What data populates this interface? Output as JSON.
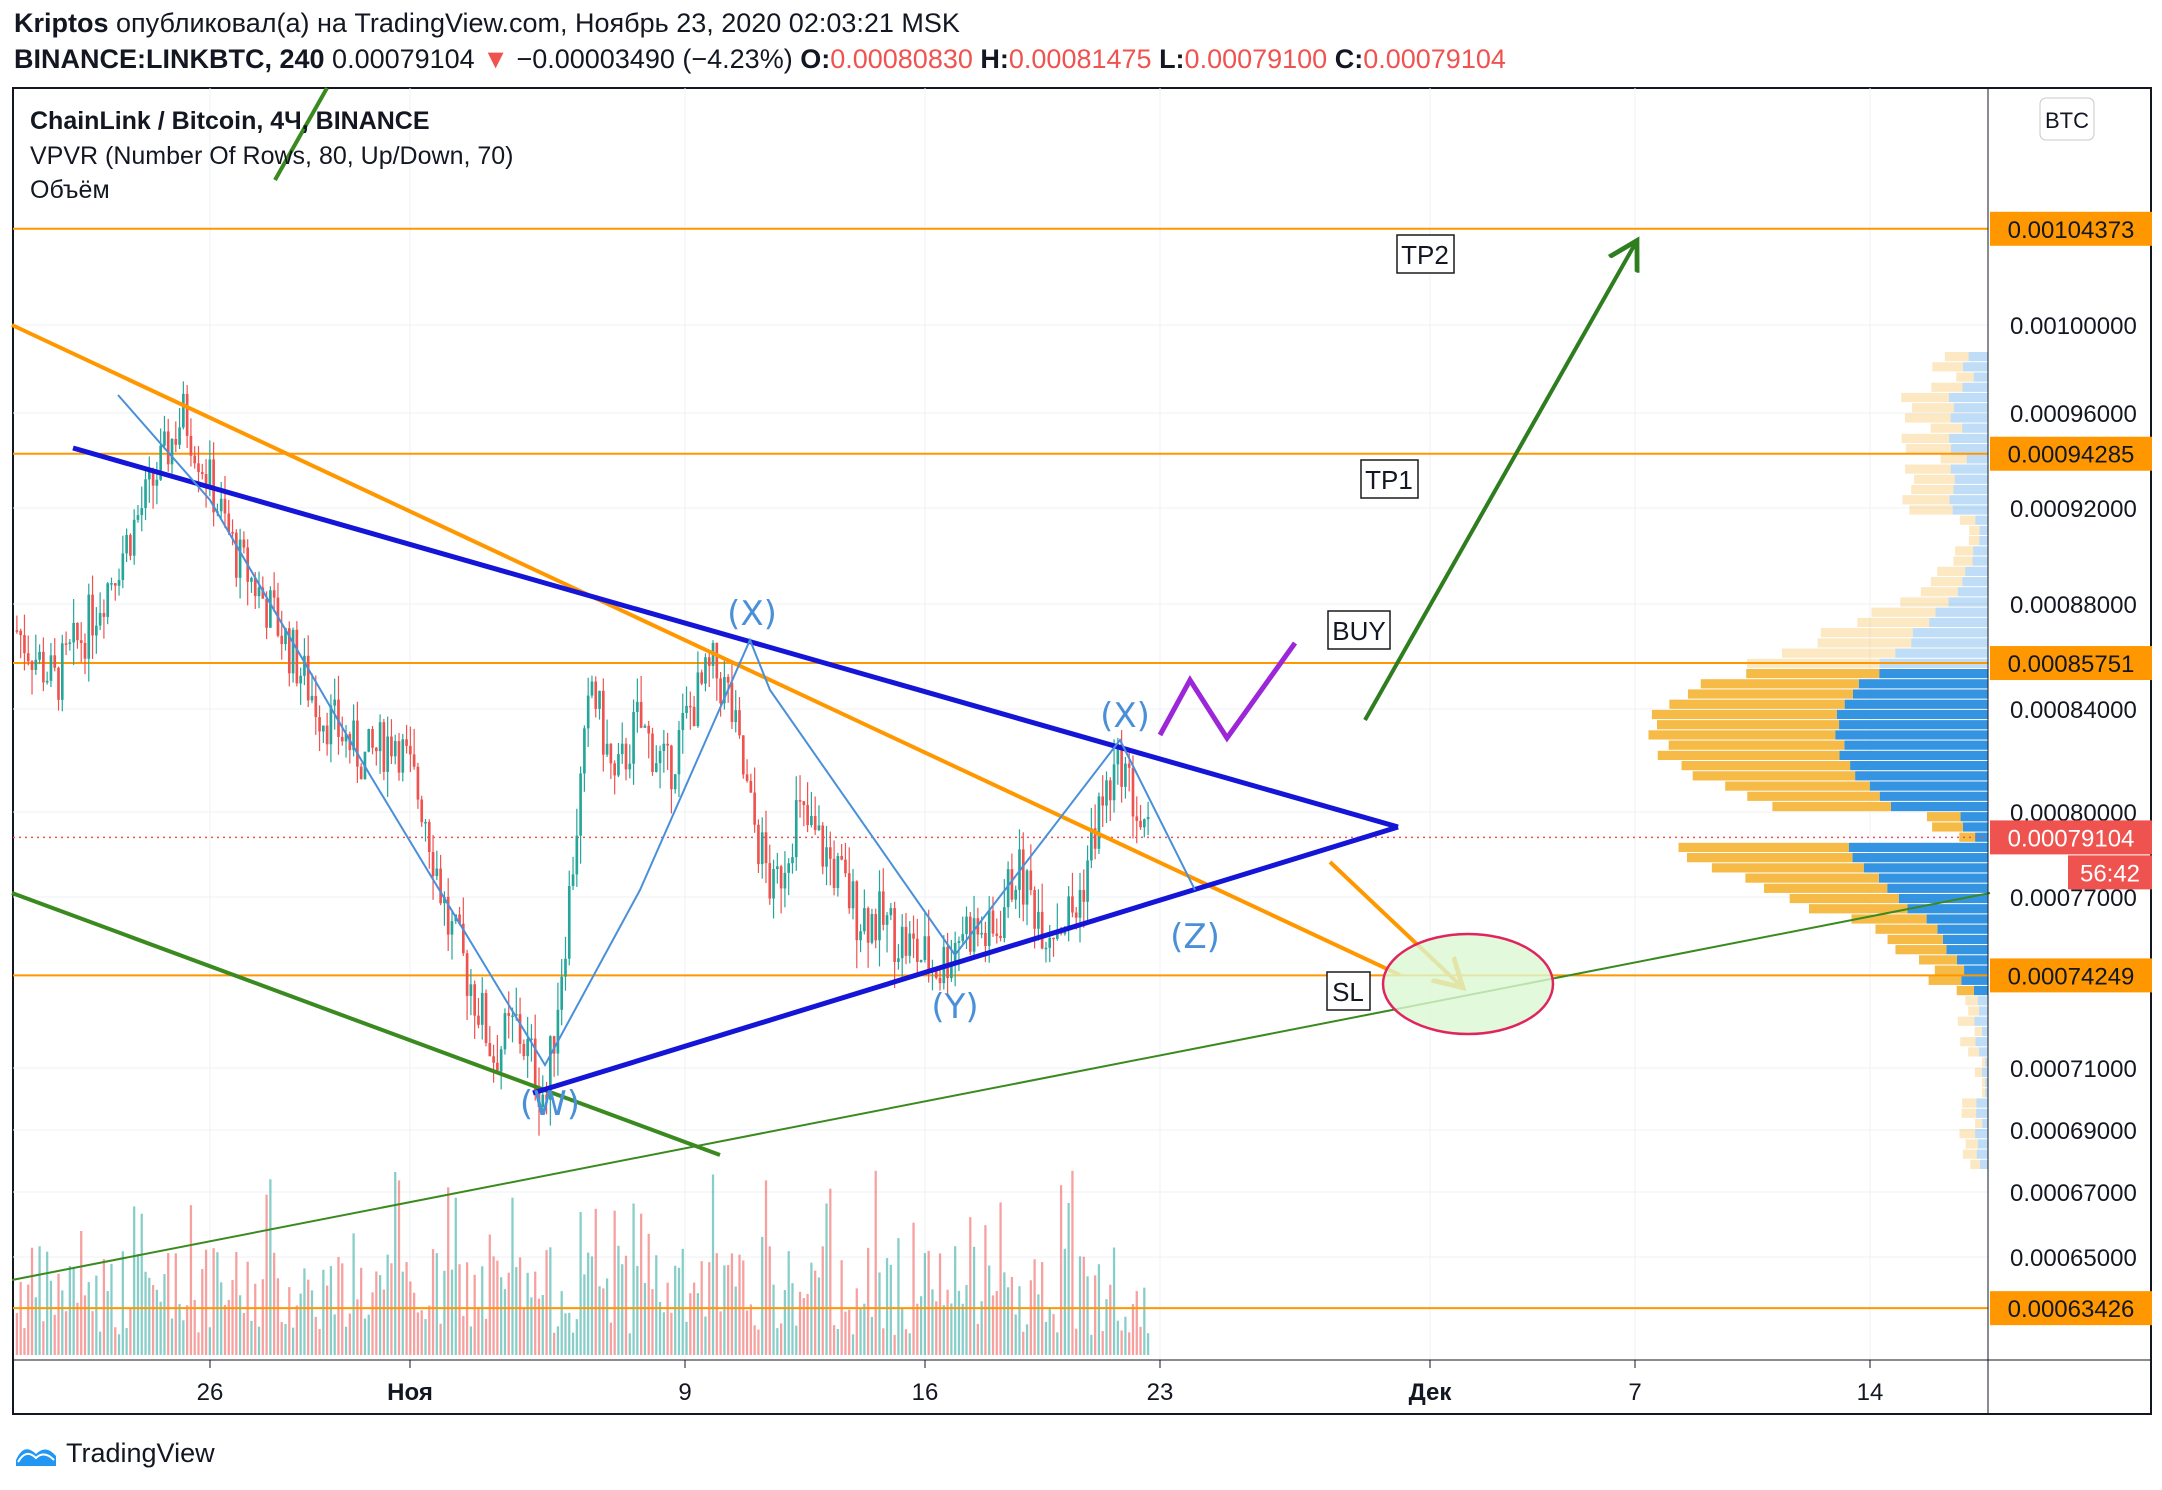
{
  "header": {
    "author": "Kriptos",
    "published_text": "опубликовал(а) на TradingView.com, Ноябрь 23, 2020 02:03:21 MSK",
    "symbol": "BINANCE:LINKBTC, 240",
    "last": "0.00079104",
    "change_arrow": "▼",
    "change": "−0.00003490 (−4.23%)",
    "o_label": "O:",
    "o": "0.00080830",
    "h_label": "H:",
    "h": "0.00081475",
    "l_label": "L:",
    "l": "0.00079100",
    "c_label": "C:",
    "c": "0.00079104"
  },
  "legend": {
    "title": "ChainLink / Bitcoin, 4Ч, BINANCE",
    "indicator": "VPVR (Number Of Rows, 80, Up/Down, 70)",
    "volume": "Объём"
  },
  "currency": "BTC",
  "countdown": "56:42",
  "footer": {
    "brand": "TradingView"
  },
  "colors": {
    "up": "#26a69a",
    "down": "#ef5350",
    "level": "#ff9800",
    "trend_blue": "#1515d8",
    "trend_orange": "#ff9800",
    "trend_green": "#3a8a20",
    "wave": "#4a90d9",
    "target_arrow": "#2e7d1f",
    "zigzag": "#9c27d8",
    "vp_up": "#2a8ee0",
    "vp_down": "#f6b73c",
    "ellipse_stroke": "#e0245e",
    "ellipse_fill": "#dcf7d2"
  },
  "chart_data": {
    "type": "candlestick",
    "title": "ChainLink / Bitcoin, 4Ч, BINANCE",
    "ylim": [
      0.000615,
      0.00111
    ],
    "y_ticks": [
      "0.00100000",
      "0.00096000",
      "0.00092000",
      "0.00088000",
      "0.00084000",
      "0.00080000",
      "0.00077000",
      "0.00071000",
      "0.00069000",
      "0.00067000",
      "0.00065000"
    ],
    "x_ticks": [
      "26",
      "Ноя",
      "9",
      "16",
      "23",
      "Дек",
      "7",
      "14"
    ],
    "horizontal_levels": [
      {
        "price": 0.00104373,
        "label": "0.00104373"
      },
      {
        "price": 0.00094285,
        "label": "0.00094285"
      },
      {
        "price": 0.00085751,
        "label": "0.00085751"
      },
      {
        "price": 0.00074249,
        "label": "0.00074249"
      },
      {
        "price": 0.00063426,
        "label": "0.00063426"
      }
    ],
    "last_price": {
      "price": 0.00079104,
      "label": "0.00079104"
    },
    "annotations": {
      "waves": [
        "(W)",
        "(X)",
        "(Y)",
        "(X)",
        "(Z)"
      ],
      "boxes": [
        "TP2",
        "TP1",
        "BUY",
        "SL"
      ]
    },
    "price_path": [
      [
        0,
        0.00087
      ],
      [
        10,
        0.00085
      ],
      [
        18,
        0.00087
      ],
      [
        26,
        0.000895
      ],
      [
        33,
        0.00092
      ],
      [
        40,
        0.000945
      ],
      [
        44,
        0.00096
      ],
      [
        50,
        0.000935
      ],
      [
        58,
        0.0009
      ],
      [
        68,
        0.000875
      ],
      [
        80,
        0.00084
      ],
      [
        92,
        0.00082
      ],
      [
        100,
        0.00083
      ],
      [
        108,
        0.0008
      ],
      [
        114,
        0.00076
      ],
      [
        120,
        0.00074
      ],
      [
        126,
        0.000715
      ],
      [
        132,
        0.000725
      ],
      [
        140,
        0.0007
      ],
      [
        146,
        0.00077
      ],
      [
        152,
        0.00085
      ],
      [
        158,
        0.00081
      ],
      [
        164,
        0.000835
      ],
      [
        172,
        0.000815
      ],
      [
        178,
        0.00084
      ],
      [
        184,
        0.000855
      ],
      [
        188,
        0.000845
      ],
      [
        194,
        0.0008
      ],
      [
        200,
        0.00077
      ],
      [
        206,
        0.0008
      ],
      [
        214,
        0.000785
      ],
      [
        222,
        0.000765
      ],
      [
        230,
        0.00076
      ],
      [
        238,
        0.00075
      ],
      [
        244,
        0.000745
      ],
      [
        250,
        0.00076
      ],
      [
        258,
        0.000755
      ],
      [
        264,
        0.00078
      ],
      [
        272,
        0.00076
      ],
      [
        280,
        0.000765
      ],
      [
        286,
        0.0008
      ],
      [
        292,
        0.00082
      ],
      [
        298,
        0.00079
      ]
    ]
  }
}
